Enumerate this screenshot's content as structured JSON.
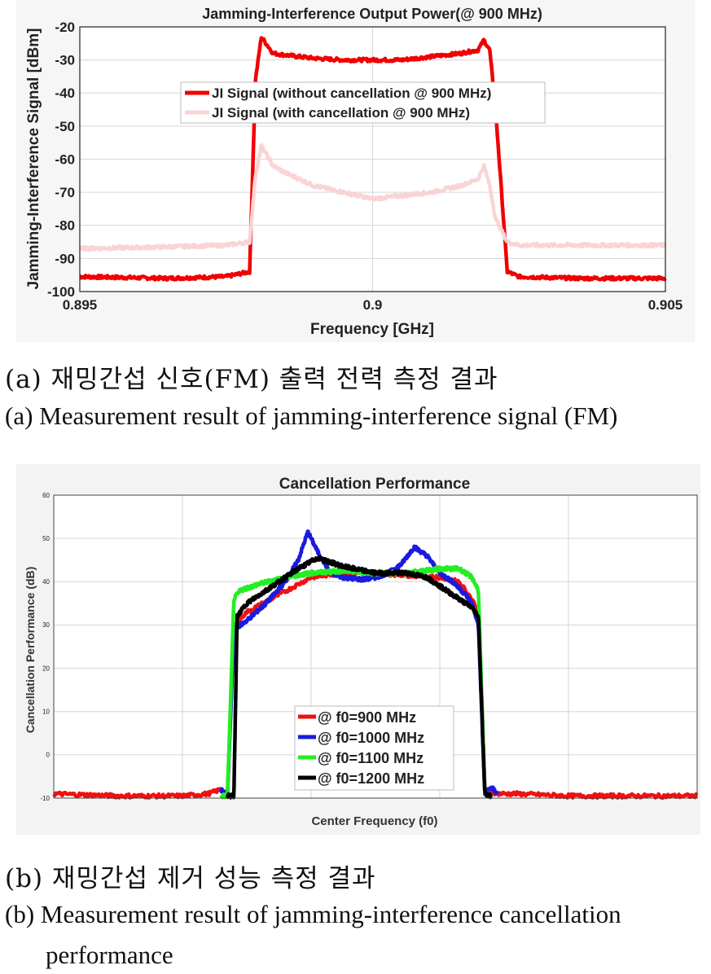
{
  "captions": {
    "a_ko": "(a) 재밍간섭 신호(FM) 출력 전력 측정 결과",
    "a_en": "(a) Measurement result of jamming-interference signal (FM)",
    "b_ko": "(b) 재밍간섭 제거 성능 측정 결과",
    "b_en_1": "(b) Measurement result of jamming-interference cancellation",
    "b_en_2": "performance"
  },
  "chart_data": [
    {
      "type": "line",
      "title": "Jamming-Interference Output Power(@ 900 MHz)",
      "xlabel": "Frequency [GHz]",
      "ylabel": "Jamming-Interference Signal [dBm]",
      "xlim": [
        0.895,
        0.905
      ],
      "ylim": [
        -100,
        -20
      ],
      "xticks": [
        0.895,
        0.9,
        0.905
      ],
      "xtick_labels": [
        "0.895",
        "0.9",
        "0.905"
      ],
      "yticks": [
        -100,
        -90,
        -80,
        -70,
        -60,
        -50,
        -40,
        -30,
        -20
      ],
      "ytick_labels": [
        "-100",
        "-90",
        "-80",
        "-70",
        "-60",
        "-50",
        "-40",
        "-30",
        "-20"
      ],
      "grid": true,
      "legend": "center",
      "series": [
        {
          "name": "JI Signal (without cancellation @ 900 MHz)",
          "color": "#f00000",
          "x": [
            0.895,
            0.8965,
            0.8975,
            0.8979,
            0.898,
            0.8981,
            0.8983,
            0.8985,
            0.899,
            0.8995,
            0.9,
            0.9005,
            0.901,
            0.9015,
            0.9018,
            0.9019,
            0.902,
            0.9021,
            0.9023,
            0.9025,
            0.9035,
            0.905
          ],
          "y": [
            -95.5,
            -96,
            -95.5,
            -94,
            -36,
            -23,
            -28,
            -28.5,
            -29.5,
            -30,
            -30,
            -30,
            -29,
            -28,
            -27,
            -24,
            -27,
            -45,
            -94,
            -95.5,
            -96,
            -96
          ]
        },
        {
          "name": "JI Signal (with cancellation @ 900 MHz)",
          "color": "#fad4d4",
          "x": [
            0.895,
            0.8965,
            0.8975,
            0.8979,
            0.898,
            0.8981,
            0.8983,
            0.8985,
            0.899,
            0.8995,
            0.9,
            0.9005,
            0.901,
            0.9015,
            0.9018,
            0.9019,
            0.902,
            0.9021,
            0.9023,
            0.9025,
            0.9035,
            0.905
          ],
          "y": [
            -87,
            -86.5,
            -86,
            -85,
            -65,
            -56,
            -62,
            -64,
            -68,
            -70,
            -72,
            -71,
            -70,
            -68,
            -66,
            -62,
            -68,
            -78,
            -85,
            -86,
            -86,
            -86
          ]
        }
      ]
    },
    {
      "type": "line",
      "title": "Cancellation Performance",
      "xlabel": "Center Frequency (f0)",
      "ylabel": "Cancellation Performance (dB)",
      "xlim": [
        0,
        100
      ],
      "ylim": [
        -10,
        60
      ],
      "yticks": [
        -10,
        0,
        10,
        20,
        30,
        40,
        50,
        60
      ],
      "ytick_labels": [
        "-10",
        "0",
        "10",
        "20",
        "30",
        "40",
        "50",
        "60"
      ],
      "grid": true,
      "legend": "bottom-center",
      "series": [
        {
          "name": "@ f0=900 MHz",
          "color": "#ee1111",
          "x": [
            0,
            10,
            20,
            24,
            26,
            27,
            28,
            30,
            35,
            40,
            45,
            50,
            55,
            60,
            63,
            65,
            66,
            67,
            69,
            72,
            80,
            90,
            100
          ],
          "y": [
            -9,
            -9.5,
            -9.5,
            -9,
            -8,
            -9.5,
            30,
            33,
            37,
            41,
            42,
            42,
            41.5,
            41,
            40,
            36,
            33,
            -8,
            -9,
            -9,
            -9.5,
            -9.5,
            -9.5
          ]
        },
        {
          "name": "@ f0=1000 MHz",
          "color": "#1a1ae0",
          "x": [
            26,
            27,
            28,
            30,
            33,
            36,
            38,
            39.5,
            41,
            43,
            45,
            48,
            50,
            52,
            54,
            56,
            58,
            60,
            62,
            64,
            65,
            66,
            67,
            68,
            69
          ],
          "y": [
            -8,
            -9.5,
            29,
            31,
            35,
            40,
            45,
            51.5,
            47,
            42,
            41,
            40.5,
            41,
            42,
            44,
            48,
            46,
            42,
            40,
            37,
            35,
            30,
            -9,
            -7.5,
            -9
          ]
        },
        {
          "name": "@ f0=1100 MHz",
          "color": "#22ee22",
          "x": [
            26,
            27,
            28,
            29,
            32,
            36,
            40,
            45,
            50,
            55,
            60,
            63,
            65,
            66,
            67,
            68
          ],
          "y": [
            -9.5,
            -9.5,
            36,
            38,
            39.5,
            41,
            42,
            42.5,
            42,
            42,
            43,
            43,
            41,
            38,
            -9,
            -9.5
          ]
        },
        {
          "name": "@ f0=1200 MHz",
          "color": "#000000",
          "x": [
            27,
            28,
            28.5,
            30,
            34,
            38,
            41,
            45,
            50,
            55,
            58,
            60,
            62,
            64,
            65,
            66,
            67,
            68
          ],
          "y": [
            -9.5,
            -9.5,
            32,
            35,
            39,
            43,
            45.5,
            43.5,
            42,
            42,
            41,
            39,
            37,
            35,
            34,
            32,
            -9,
            -9.5
          ]
        }
      ]
    }
  ]
}
